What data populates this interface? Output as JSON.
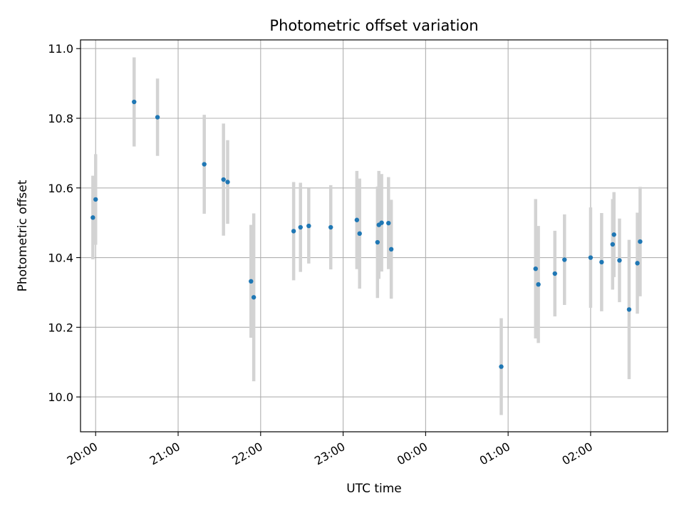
{
  "chart_data": {
    "type": "scatter",
    "title": "Photometric offset variation",
    "xlabel": "UTC time",
    "ylabel": "Photometric offset",
    "grid": true,
    "legend": "none",
    "x_axis_kind": "time",
    "x_range": [
      "19:49",
      "02:56"
    ],
    "ylim": [
      9.9,
      11.025
    ],
    "x_ticks": [
      "20:00",
      "21:00",
      "22:00",
      "23:00",
      "00:00",
      "01:00",
      "02:00"
    ],
    "y_ticks": [
      10.0,
      10.2,
      10.4,
      10.6,
      10.8,
      11.0
    ],
    "y_tick_labels": [
      "10.0",
      "10.2",
      "10.4",
      "10.6",
      "10.8",
      "11.0"
    ],
    "marker_color": "#1f77b4",
    "errorbar_color": "#d3d3d3",
    "points": [
      {
        "t": "19:58",
        "y": 10.515,
        "err": 0.12
      },
      {
        "t": "20:00",
        "y": 10.567,
        "err": 0.13
      },
      {
        "t": "20:28",
        "y": 10.847,
        "err": 0.128
      },
      {
        "t": "20:45",
        "y": 10.803,
        "err": 0.111
      },
      {
        "t": "21:19",
        "y": 10.668,
        "err": 0.142
      },
      {
        "t": "21:33",
        "y": 10.624,
        "err": 0.161
      },
      {
        "t": "21:36",
        "y": 10.617,
        "err": 0.12
      },
      {
        "t": "21:53",
        "y": 10.332,
        "err": 0.162
      },
      {
        "t": "21:55",
        "y": 10.286,
        "err": 0.241
      },
      {
        "t": "22:24",
        "y": 10.476,
        "err": 0.141
      },
      {
        "t": "22:29",
        "y": 10.487,
        "err": 0.128
      },
      {
        "t": "22:35",
        "y": 10.491,
        "err": 0.108
      },
      {
        "t": "22:51",
        "y": 10.487,
        "err": 0.121
      },
      {
        "t": "23:10",
        "y": 10.508,
        "err": 0.141
      },
      {
        "t": "23:12",
        "y": 10.469,
        "err": 0.158
      },
      {
        "t": "23:25",
        "y": 10.444,
        "err": 0.16
      },
      {
        "t": "23:26",
        "y": 10.494,
        "err": 0.155
      },
      {
        "t": "23:28",
        "y": 10.5,
        "err": 0.14
      },
      {
        "t": "23:33",
        "y": 10.499,
        "err": 0.132
      },
      {
        "t": "23:35",
        "y": 10.424,
        "err": 0.142
      },
      {
        "t": "00:55",
        "y": 10.087,
        "err": 0.139
      },
      {
        "t": "01:20",
        "y": 10.368,
        "err": 0.2
      },
      {
        "t": "01:22",
        "y": 10.323,
        "err": 0.168
      },
      {
        "t": "01:34",
        "y": 10.354,
        "err": 0.123
      },
      {
        "t": "01:41",
        "y": 10.394,
        "err": 0.13
      },
      {
        "t": "02:00",
        "y": 10.4,
        "err": 0.144
      },
      {
        "t": "02:08",
        "y": 10.387,
        "err": 0.141
      },
      {
        "t": "02:16",
        "y": 10.438,
        "err": 0.13
      },
      {
        "t": "02:17",
        "y": 10.466,
        "err": 0.122
      },
      {
        "t": "02:21",
        "y": 10.392,
        "err": 0.12
      },
      {
        "t": "02:28",
        "y": 10.251,
        "err": 0.2
      },
      {
        "t": "02:34",
        "y": 10.384,
        "err": 0.145
      },
      {
        "t": "02:36",
        "y": 10.446,
        "err": 0.157
      }
    ]
  }
}
